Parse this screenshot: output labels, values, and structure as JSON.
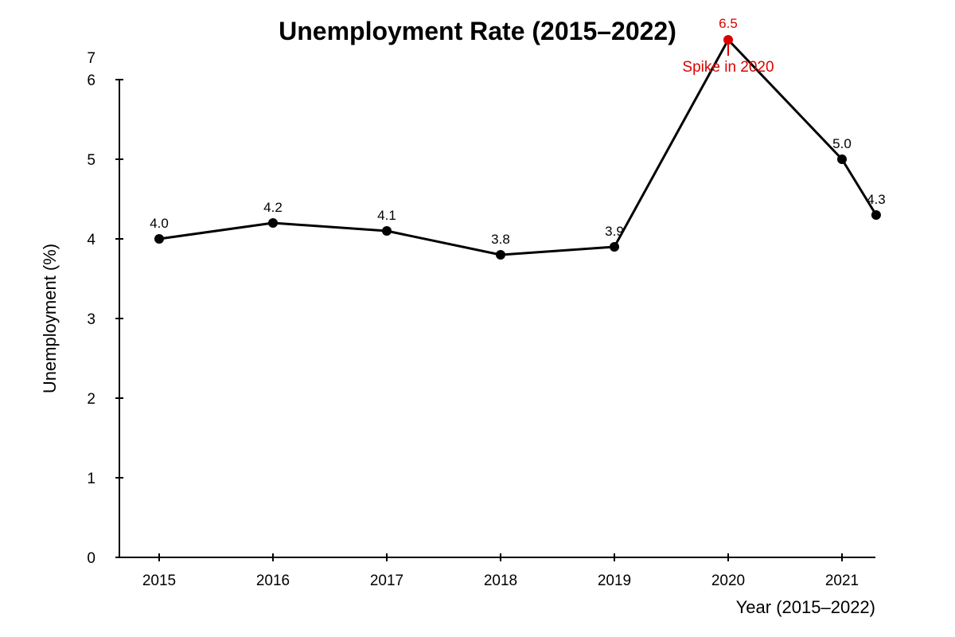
{
  "chart_data": {
    "type": "line",
    "title": "Unemployment Rate (2015–2022)",
    "xlabel": "Year (2015–2022)",
    "ylabel": "Unemployment (%)",
    "x": [
      2015,
      2016,
      2017,
      2018,
      2019,
      2020,
      2021,
      2021.3
    ],
    "x_tick_labels": [
      "2015",
      "2016",
      "2017",
      "2018",
      "2019",
      "2020",
      "2021"
    ],
    "y_ticks": [
      0,
      1,
      2,
      3,
      4,
      5,
      6
    ],
    "y_extra_tick_label": "7",
    "series": [
      {
        "values": [
          4.0,
          4.2,
          4.1,
          3.8,
          3.9,
          6.5,
          5.0,
          4.3
        ],
        "data_labels": [
          "4.0",
          "4.2",
          "4.1",
          "3.8",
          "3.9",
          "6.5",
          "5.0",
          "4.3"
        ]
      }
    ],
    "highlight": {
      "index": 5,
      "label": "6.5",
      "annotation": "Spike in 2020"
    },
    "ylim": [
      0,
      6
    ],
    "grid": false,
    "colors": {
      "line": "#000000",
      "marker": "#000000",
      "highlight": "#dd0000"
    }
  }
}
